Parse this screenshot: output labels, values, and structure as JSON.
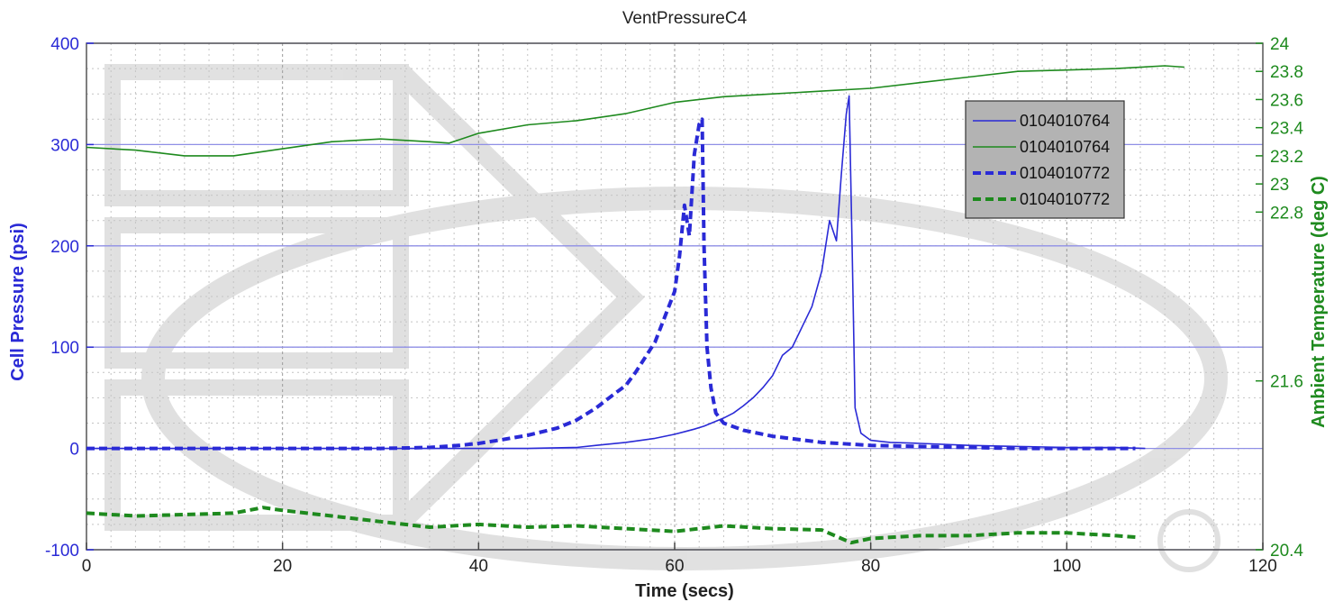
{
  "chart_data": {
    "type": "line",
    "title": "VentPressureC4",
    "xlabel": "Time (secs)",
    "ylabel": "Cell Pressure (psi)",
    "y2label": "Ambient Temperature (deg C)",
    "xlim": [
      0,
      120
    ],
    "ylim": [
      -100,
      400
    ],
    "y2lim": [
      20.4,
      24
    ],
    "xticks": [
      "0",
      "20",
      "40",
      "60",
      "80",
      "100",
      "120"
    ],
    "yticks": [
      "-100",
      "0",
      "100",
      "200",
      "300",
      "400"
    ],
    "y2ticks": [
      "20.4",
      "21.6",
      "22.8",
      "23",
      "23.2",
      "23.4",
      "23.6",
      "23.8",
      "24"
    ],
    "grid": true,
    "legend": "top-right",
    "colors": {
      "pressure": "#2a2ad6",
      "temperature": "#1e8a1e"
    },
    "series": [
      {
        "name": "0104010764",
        "axis": "left",
        "style": "solid",
        "color": "#2a2ad6",
        "x": [
          0,
          10,
          20,
          30,
          40,
          45,
          50,
          52,
          55,
          58,
          60,
          62,
          63,
          64,
          65,
          66,
          67,
          68,
          69,
          70,
          71,
          72,
          73,
          74,
          75,
          75.8,
          76.5,
          77,
          77.5,
          77.8,
          78.1,
          78.4,
          79,
          80,
          82,
          85,
          90,
          95,
          100,
          105,
          108
        ],
        "values": [
          0,
          0,
          0,
          0,
          0,
          0,
          1,
          3,
          6,
          10,
          14,
          19,
          22,
          26,
          30,
          35,
          42,
          50,
          60,
          72,
          92,
          100,
          120,
          140,
          175,
          225,
          205,
          270,
          330,
          348,
          200,
          40,
          15,
          8,
          6,
          5,
          3,
          2,
          1,
          1,
          0
        ]
      },
      {
        "name": "0104010764",
        "axis": "right",
        "style": "solid",
        "color": "#1e8a1e",
        "x": [
          0,
          5,
          10,
          15,
          20,
          25,
          30,
          35,
          37,
          40,
          45,
          50,
          55,
          60,
          65,
          70,
          75,
          80,
          85,
          90,
          95,
          100,
          105,
          110,
          112
        ],
        "values": [
          23.26,
          23.24,
          23.2,
          23.2,
          23.25,
          23.3,
          23.32,
          23.3,
          23.29,
          23.36,
          23.42,
          23.45,
          23.5,
          23.58,
          23.62,
          23.64,
          23.66,
          23.68,
          23.72,
          23.76,
          23.8,
          23.81,
          23.82,
          23.84,
          23.83
        ]
      },
      {
        "name": "0104010772",
        "axis": "left",
        "style": "dashed",
        "color": "#2a2ad6",
        "x": [
          0,
          10,
          20,
          30,
          35,
          38,
          40,
          42,
          45,
          48,
          50,
          52,
          54,
          55,
          56,
          57,
          58,
          59,
          60,
          60.5,
          61,
          61.5,
          62,
          62.5,
          62.8,
          63,
          63.3,
          63.7,
          64.2,
          65,
          67,
          70,
          75,
          80,
          85,
          90,
          95,
          100,
          107
        ],
        "values": [
          0,
          0,
          0,
          0,
          1,
          3,
          5,
          8,
          13,
          20,
          28,
          40,
          55,
          62,
          75,
          90,
          105,
          130,
          155,
          190,
          240,
          210,
          290,
          320,
          325,
          200,
          100,
          60,
          35,
          25,
          18,
          12,
          6,
          3,
          2,
          1,
          0,
          0,
          0
        ]
      },
      {
        "name": "0104010772",
        "axis": "right",
        "style": "dashed",
        "color": "#1e8a1e",
        "x": [
          0,
          5,
          10,
          15,
          18,
          20,
          25,
          30,
          35,
          40,
          45,
          50,
          55,
          60,
          65,
          70,
          75,
          78,
          80,
          85,
          90,
          95,
          100,
          105,
          107
        ],
        "values": [
          20.66,
          20.64,
          20.65,
          20.66,
          20.7,
          20.68,
          20.64,
          20.6,
          20.56,
          20.58,
          20.56,
          20.57,
          20.55,
          20.53,
          20.57,
          20.55,
          20.54,
          20.45,
          20.48,
          20.5,
          20.5,
          20.52,
          20.52,
          20.5,
          20.49
        ]
      }
    ]
  }
}
